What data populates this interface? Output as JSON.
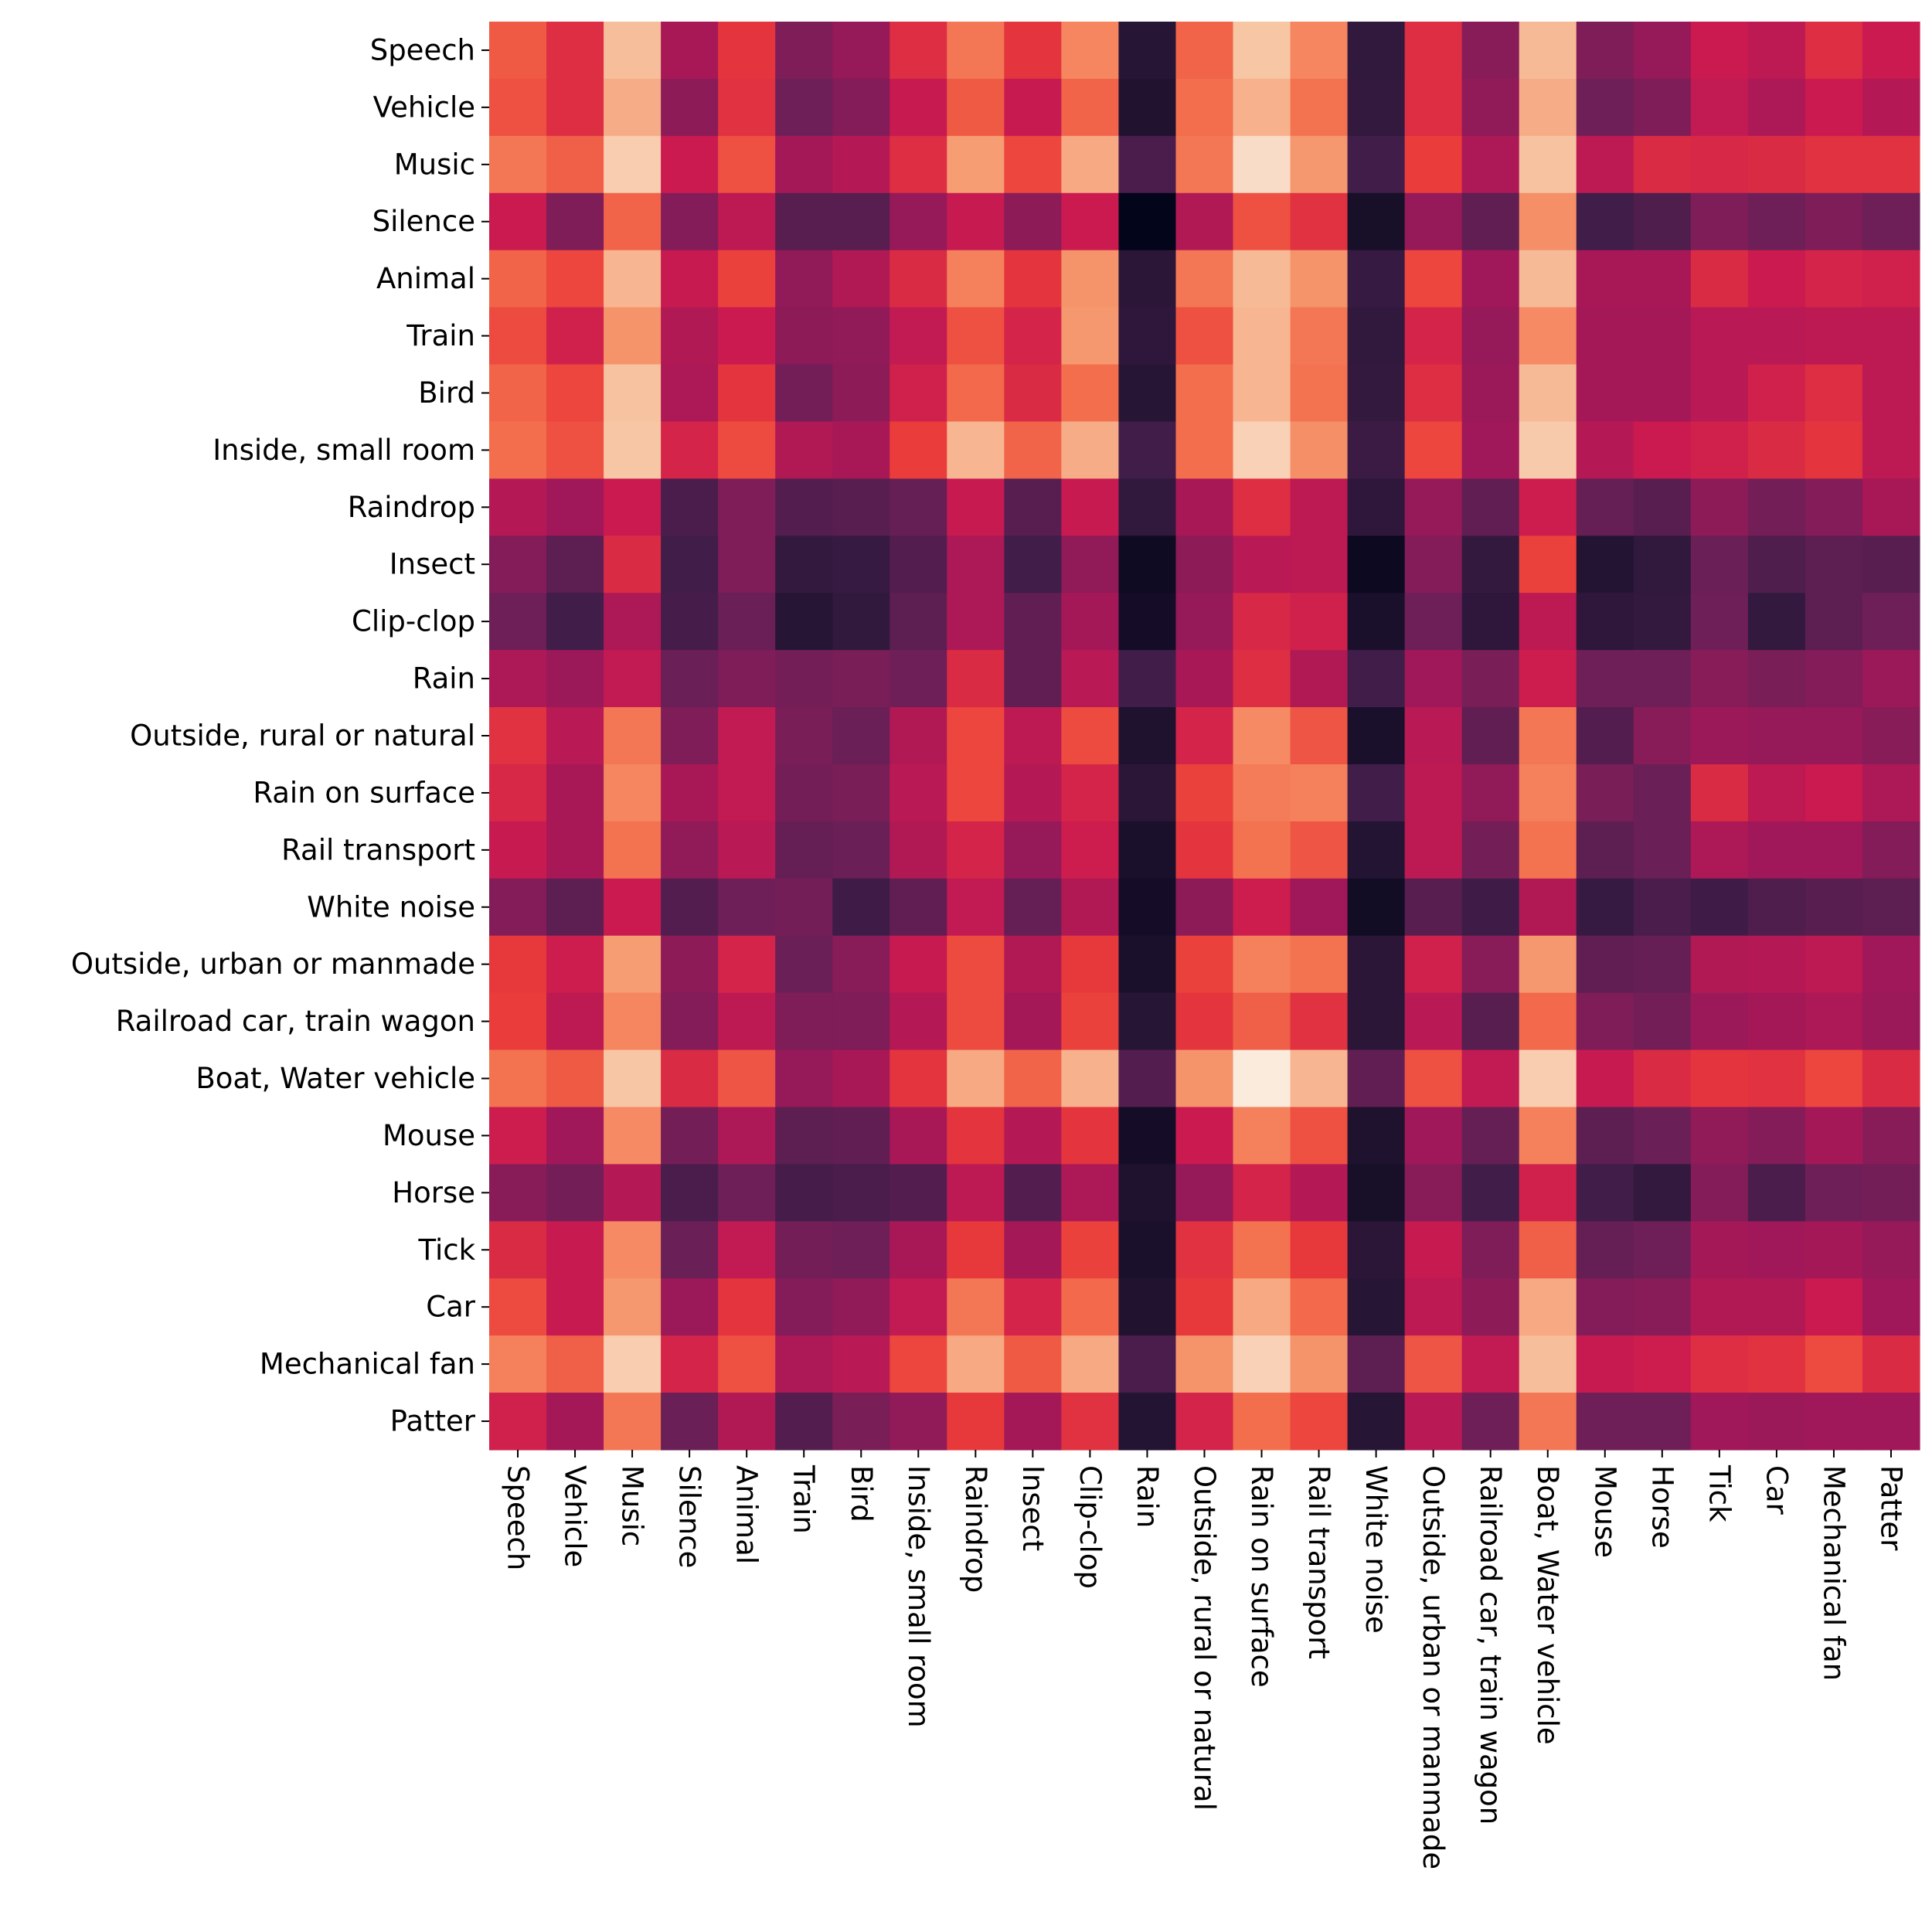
{
  "chart_data": {
    "type": "heatmap",
    "title": "",
    "xlabel": "",
    "ylabel": "",
    "colorbar": false,
    "colormap": "rocket",
    "value_range": [
      0,
      1
    ],
    "value_note_scale": "relative colour level 0 (darkest) to 1 (lightest)",
    "y_labels": [
      "Speech",
      "Vehicle",
      "Music",
      "Silence",
      "Animal",
      "Train",
      "Bird",
      "Inside, small room",
      "Raindrop",
      "Insect",
      "Clip-clop",
      "Rain",
      "Outside, rural or natural",
      "Rain on surface",
      "Rail transport",
      "White noise",
      "Outside, urban or manmade",
      "Railroad car, train wagon",
      "Boat, Water vehicle",
      "Mouse",
      "Horse",
      "Tick",
      "Car",
      "Mechanical fan",
      "Patter"
    ],
    "x_labels": [
      "Speech",
      "Vehicle",
      "Music",
      "Silence",
      "Animal",
      "Train",
      "Bird",
      "Inside, small room",
      "Raindrop",
      "Insect",
      "Clip-clop",
      "Rain",
      "Outside, rural or natural",
      "Rain on surface",
      "Rail transport",
      "White noise",
      "Outside, urban or manmade",
      "Railroad car, train wagon",
      "Boat, Water vehicle",
      "Mouse",
      "Horse",
      "Tick",
      "Car",
      "Mechanical fan",
      "Patter"
    ],
    "values": [
      [
        0.66,
        0.56,
        0.88,
        0.42,
        0.58,
        0.33,
        0.38,
        0.56,
        0.72,
        0.58,
        0.75,
        0.12,
        0.68,
        0.9,
        0.75,
        0.15,
        0.56,
        0.35,
        0.87,
        0.33,
        0.38,
        0.5,
        0.47,
        0.56,
        0.5
      ],
      [
        0.64,
        0.56,
        0.84,
        0.36,
        0.57,
        0.3,
        0.34,
        0.49,
        0.66,
        0.49,
        0.68,
        0.1,
        0.7,
        0.85,
        0.71,
        0.16,
        0.56,
        0.37,
        0.84,
        0.3,
        0.33,
        0.48,
        0.43,
        0.5,
        0.45
      ],
      [
        0.72,
        0.67,
        0.92,
        0.5,
        0.64,
        0.41,
        0.45,
        0.56,
        0.8,
        0.62,
        0.83,
        0.22,
        0.72,
        0.96,
        0.79,
        0.2,
        0.6,
        0.43,
        0.89,
        0.47,
        0.55,
        0.54,
        0.55,
        0.57,
        0.57
      ],
      [
        0.5,
        0.33,
        0.68,
        0.34,
        0.47,
        0.25,
        0.25,
        0.38,
        0.49,
        0.36,
        0.5,
        0.0,
        0.44,
        0.64,
        0.57,
        0.07,
        0.38,
        0.27,
        0.77,
        0.2,
        0.23,
        0.33,
        0.3,
        0.33,
        0.3
      ],
      [
        0.68,
        0.62,
        0.86,
        0.49,
        0.61,
        0.37,
        0.44,
        0.55,
        0.74,
        0.58,
        0.78,
        0.13,
        0.72,
        0.87,
        0.78,
        0.17,
        0.62,
        0.4,
        0.87,
        0.42,
        0.42,
        0.55,
        0.5,
        0.53,
        0.52
      ],
      [
        0.63,
        0.52,
        0.78,
        0.44,
        0.5,
        0.36,
        0.37,
        0.48,
        0.64,
        0.53,
        0.79,
        0.14,
        0.64,
        0.86,
        0.72,
        0.15,
        0.53,
        0.38,
        0.76,
        0.41,
        0.41,
        0.46,
        0.46,
        0.47,
        0.47
      ],
      [
        0.68,
        0.62,
        0.89,
        0.43,
        0.58,
        0.31,
        0.36,
        0.52,
        0.69,
        0.55,
        0.7,
        0.12,
        0.7,
        0.86,
        0.71,
        0.16,
        0.56,
        0.39,
        0.87,
        0.41,
        0.41,
        0.46,
        0.52,
        0.56,
        0.47
      ],
      [
        0.7,
        0.64,
        0.9,
        0.53,
        0.63,
        0.44,
        0.42,
        0.6,
        0.86,
        0.68,
        0.84,
        0.2,
        0.7,
        0.93,
        0.77,
        0.18,
        0.62,
        0.4,
        0.91,
        0.45,
        0.5,
        0.52,
        0.55,
        0.58,
        0.47
      ],
      [
        0.45,
        0.4,
        0.5,
        0.22,
        0.33,
        0.24,
        0.25,
        0.28,
        0.49,
        0.25,
        0.49,
        0.15,
        0.42,
        0.56,
        0.47,
        0.14,
        0.38,
        0.27,
        0.51,
        0.28,
        0.25,
        0.36,
        0.31,
        0.34,
        0.42
      ],
      [
        0.34,
        0.26,
        0.55,
        0.2,
        0.33,
        0.16,
        0.17,
        0.24,
        0.43,
        0.2,
        0.37,
        0.04,
        0.36,
        0.46,
        0.47,
        0.03,
        0.34,
        0.16,
        0.61,
        0.11,
        0.15,
        0.29,
        0.23,
        0.26,
        0.25
      ],
      [
        0.3,
        0.2,
        0.43,
        0.21,
        0.29,
        0.12,
        0.15,
        0.26,
        0.43,
        0.27,
        0.41,
        0.06,
        0.38,
        0.54,
        0.52,
        0.08,
        0.3,
        0.14,
        0.47,
        0.14,
        0.16,
        0.3,
        0.16,
        0.26,
        0.3
      ],
      [
        0.43,
        0.39,
        0.48,
        0.29,
        0.33,
        0.31,
        0.32,
        0.3,
        0.55,
        0.27,
        0.46,
        0.2,
        0.42,
        0.56,
        0.44,
        0.2,
        0.4,
        0.32,
        0.51,
        0.3,
        0.3,
        0.35,
        0.32,
        0.34,
        0.39
      ],
      [
        0.57,
        0.46,
        0.72,
        0.33,
        0.48,
        0.32,
        0.29,
        0.44,
        0.62,
        0.47,
        0.63,
        0.09,
        0.53,
        0.76,
        0.65,
        0.08,
        0.46,
        0.27,
        0.72,
        0.24,
        0.35,
        0.39,
        0.38,
        0.38,
        0.35
      ],
      [
        0.54,
        0.42,
        0.75,
        0.42,
        0.48,
        0.31,
        0.32,
        0.46,
        0.62,
        0.45,
        0.53,
        0.13,
        0.61,
        0.73,
        0.74,
        0.2,
        0.47,
        0.37,
        0.74,
        0.32,
        0.29,
        0.55,
        0.47,
        0.5,
        0.43
      ],
      [
        0.49,
        0.42,
        0.71,
        0.37,
        0.46,
        0.28,
        0.29,
        0.44,
        0.53,
        0.38,
        0.51,
        0.08,
        0.58,
        0.71,
        0.65,
        0.11,
        0.47,
        0.31,
        0.71,
        0.26,
        0.29,
        0.43,
        0.4,
        0.4,
        0.34
      ],
      [
        0.34,
        0.26,
        0.5,
        0.24,
        0.3,
        0.31,
        0.19,
        0.27,
        0.48,
        0.28,
        0.44,
        0.06,
        0.36,
        0.51,
        0.4,
        0.05,
        0.25,
        0.19,
        0.44,
        0.17,
        0.22,
        0.19,
        0.23,
        0.25,
        0.26
      ],
      [
        0.59,
        0.51,
        0.8,
        0.36,
        0.53,
        0.29,
        0.35,
        0.49,
        0.63,
        0.44,
        0.59,
        0.08,
        0.61,
        0.74,
        0.71,
        0.13,
        0.52,
        0.35,
        0.79,
        0.27,
        0.28,
        0.44,
        0.45,
        0.47,
        0.4
      ],
      [
        0.6,
        0.47,
        0.75,
        0.34,
        0.47,
        0.33,
        0.33,
        0.45,
        0.63,
        0.41,
        0.61,
        0.12,
        0.58,
        0.67,
        0.57,
        0.13,
        0.46,
        0.25,
        0.69,
        0.33,
        0.31,
        0.39,
        0.41,
        0.43,
        0.39
      ],
      [
        0.71,
        0.66,
        0.9,
        0.55,
        0.65,
        0.38,
        0.42,
        0.58,
        0.83,
        0.68,
        0.85,
        0.24,
        0.78,
        1.0,
        0.86,
        0.27,
        0.64,
        0.48,
        0.92,
        0.49,
        0.55,
        0.58,
        0.57,
        0.62,
        0.55
      ],
      [
        0.51,
        0.4,
        0.76,
        0.31,
        0.43,
        0.26,
        0.27,
        0.42,
        0.58,
        0.45,
        0.58,
        0.06,
        0.5,
        0.74,
        0.64,
        0.09,
        0.4,
        0.28,
        0.74,
        0.26,
        0.29,
        0.37,
        0.34,
        0.41,
        0.35
      ],
      [
        0.35,
        0.31,
        0.45,
        0.22,
        0.3,
        0.21,
        0.22,
        0.24,
        0.47,
        0.24,
        0.43,
        0.09,
        0.38,
        0.53,
        0.45,
        0.07,
        0.35,
        0.2,
        0.52,
        0.2,
        0.16,
        0.34,
        0.22,
        0.3,
        0.31
      ],
      [
        0.55,
        0.49,
        0.76,
        0.29,
        0.48,
        0.31,
        0.3,
        0.42,
        0.59,
        0.41,
        0.61,
        0.08,
        0.57,
        0.71,
        0.59,
        0.13,
        0.49,
        0.33,
        0.67,
        0.28,
        0.3,
        0.41,
        0.4,
        0.41,
        0.38
      ],
      [
        0.63,
        0.49,
        0.79,
        0.39,
        0.58,
        0.34,
        0.37,
        0.48,
        0.72,
        0.53,
        0.69,
        0.1,
        0.59,
        0.83,
        0.69,
        0.12,
        0.47,
        0.36,
        0.83,
        0.34,
        0.35,
        0.44,
        0.44,
        0.5,
        0.4
      ],
      [
        0.74,
        0.67,
        0.92,
        0.53,
        0.64,
        0.43,
        0.46,
        0.62,
        0.83,
        0.66,
        0.83,
        0.22,
        0.78,
        0.93,
        0.78,
        0.26,
        0.65,
        0.48,
        0.88,
        0.49,
        0.51,
        0.56,
        0.57,
        0.63,
        0.55
      ],
      [
        0.52,
        0.41,
        0.72,
        0.29,
        0.44,
        0.24,
        0.32,
        0.37,
        0.59,
        0.41,
        0.57,
        0.11,
        0.53,
        0.7,
        0.62,
        0.12,
        0.46,
        0.3,
        0.72,
        0.3,
        0.3,
        0.4,
        0.39,
        0.4,
        0.4
      ]
    ]
  }
}
